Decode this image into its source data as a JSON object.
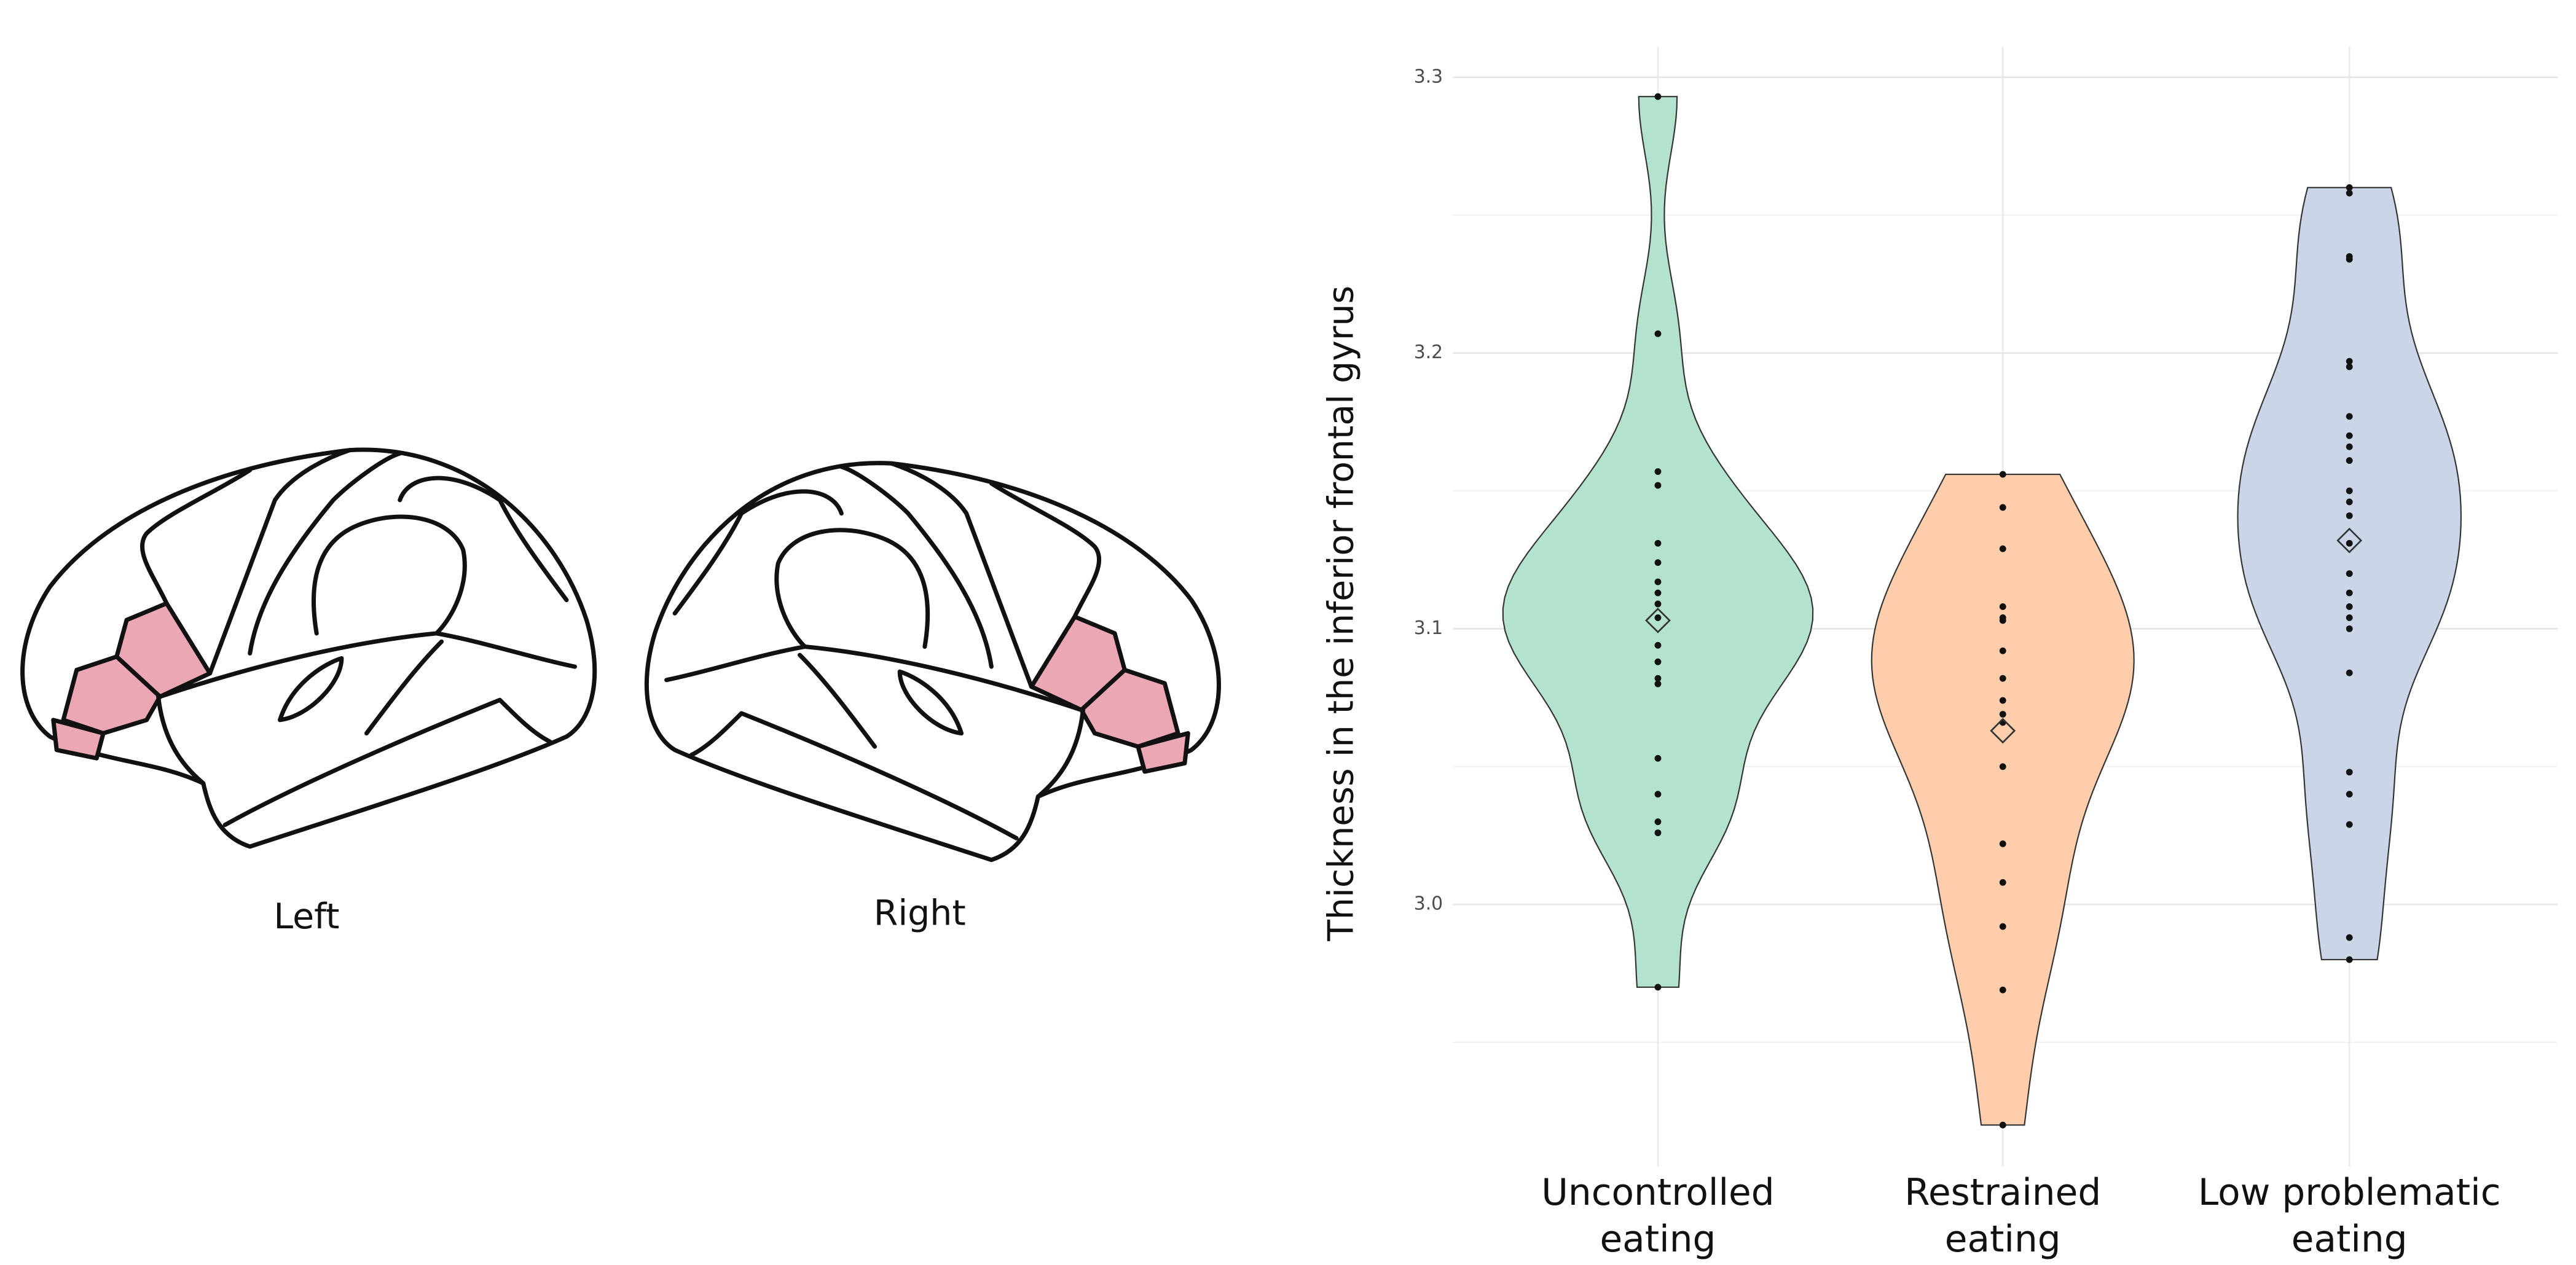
{
  "brain_panel": {
    "labels": [
      "Left",
      "Right"
    ]
  },
  "chart_data": {
    "type": "violin",
    "ylabel": "Thickness in the inferior frontal gyrus",
    "categories": [
      "Uncontrolled eating",
      "Restrained eating",
      "Low problematic eating"
    ],
    "colors": [
      "#b3e2cd",
      "#fdcdac",
      "#cbd5e8"
    ],
    "values": [
      [
        3.293,
        3.207,
        3.157,
        3.152,
        3.131,
        3.124,
        3.117,
        3.113,
        3.109,
        3.104,
        3.094,
        3.088,
        3.082,
        3.08,
        3.053,
        3.04,
        3.03,
        3.026,
        2.97
      ],
      [
        3.156,
        3.144,
        3.129,
        3.108,
        3.104,
        3.103,
        3.092,
        3.082,
        3.074,
        3.069,
        3.066,
        3.05,
        3.022,
        3.008,
        2.992,
        2.969,
        2.92
      ],
      [
        3.26,
        3.258,
        3.235,
        3.234,
        3.197,
        3.195,
        3.177,
        3.17,
        3.166,
        3.161,
        3.15,
        3.146,
        3.141,
        3.131,
        3.12,
        3.113,
        3.108,
        3.104,
        3.1,
        3.084,
        3.048,
        3.04,
        3.029,
        2.988,
        2.98
      ]
    ],
    "means": [
      3.103,
      3.063,
      3.132
    ],
    "ylim": [
      2.905,
      3.311
    ],
    "yticks": [
      {
        "value": 3,
        "label": "3.0"
      },
      3.1,
      3.2,
      3.3
    ],
    "grid": true
  }
}
